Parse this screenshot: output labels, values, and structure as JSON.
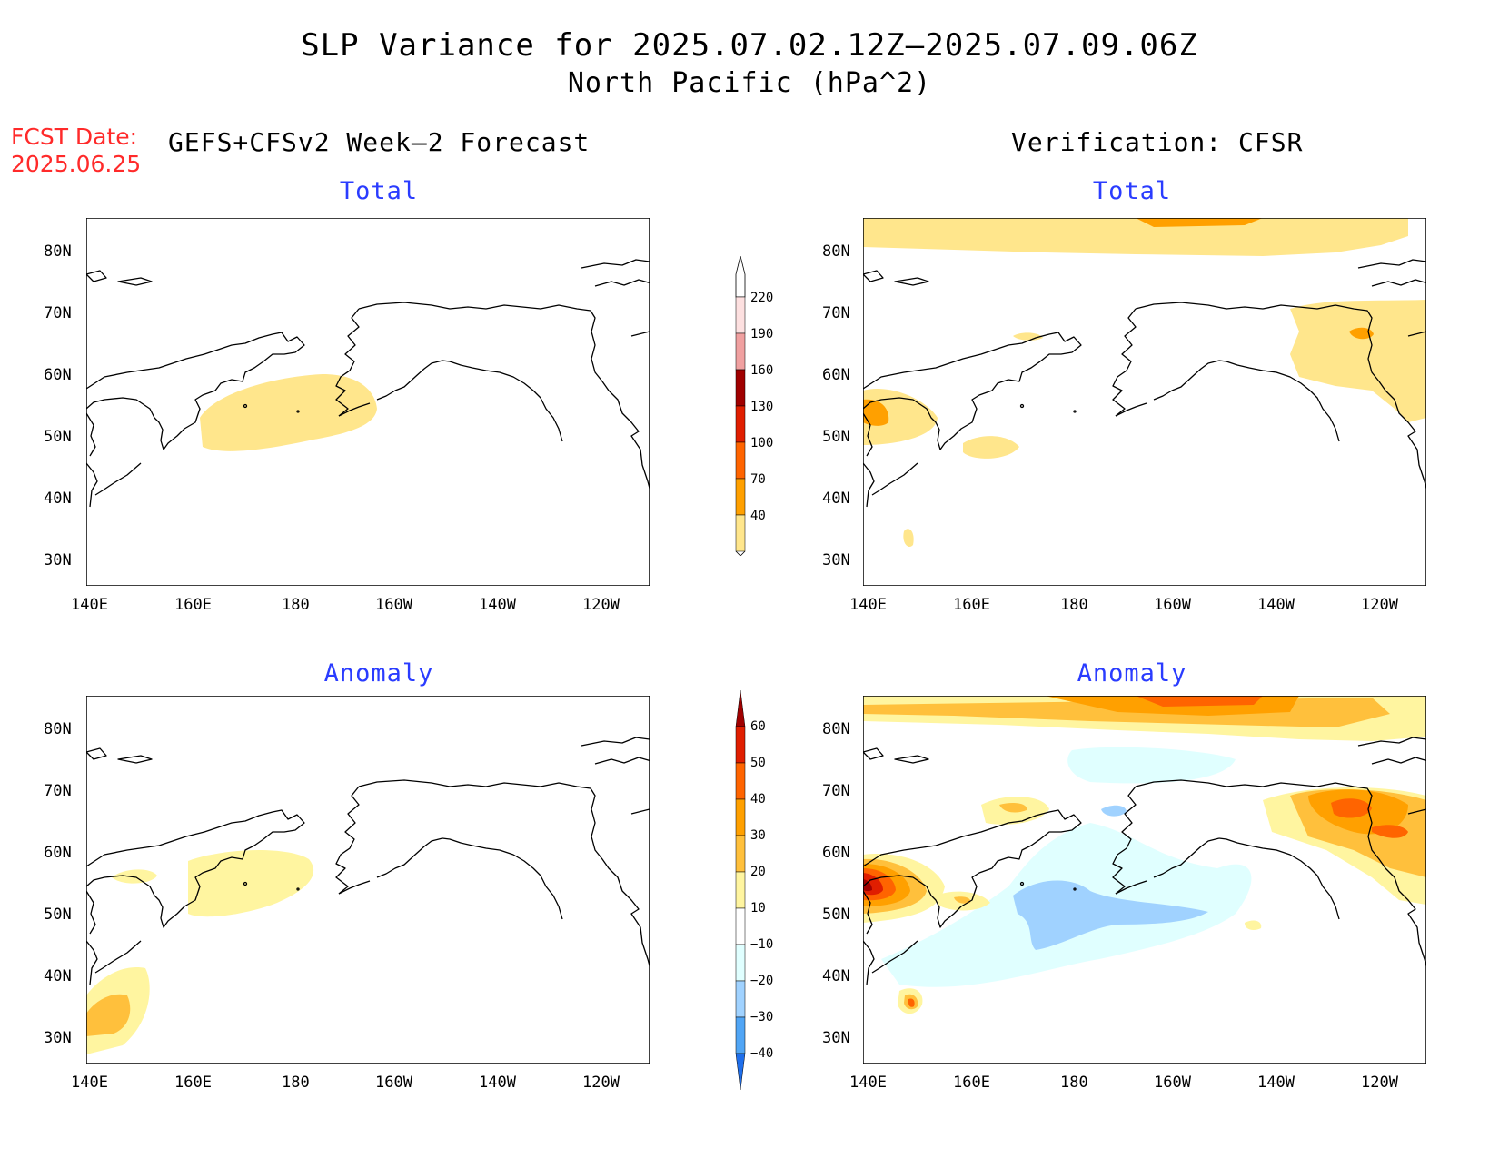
{
  "title_line1": "SLP Variance for 2025.07.02.12Z–2025.07.09.06Z",
  "title_line2": "North Pacific (hPa^2)",
  "fcst_label": "FCST Date:",
  "fcst_date": "2025.06.25",
  "left_header": "GEFS+CFSv2 Week–2 Forecast",
  "right_header": "Verification: CFSR",
  "panels": {
    "fcst_total": {
      "title": "Total"
    },
    "verif_total": {
      "title": "Total"
    },
    "fcst_anom": {
      "title": "Anomaly"
    },
    "verif_anom": {
      "title": "Anomaly"
    }
  },
  "lat_labels": [
    "80N",
    "70N",
    "60N",
    "50N",
    "40N",
    "30N"
  ],
  "lon_labels": [
    "140E",
    "160E",
    "180",
    "160W",
    "140W",
    "120W"
  ],
  "total_colorbar": {
    "levels": [
      "220",
      "190",
      "160",
      "130",
      "100",
      "70",
      "40"
    ],
    "colors": [
      "#fde0e0",
      "#f0a0a0",
      "#a00000",
      "#e01e00",
      "#ff6400",
      "#ffa000",
      "#ffe68c"
    ]
  },
  "anomaly_colorbar": {
    "levels": [
      "60",
      "50",
      "40",
      "30",
      "20",
      "10",
      "−10",
      "−20",
      "−30",
      "−40"
    ],
    "colors": [
      "#a00000",
      "#e01e00",
      "#ff6400",
      "#ffa000",
      "#ffc03c",
      "#fff5a0",
      "#ffffff",
      "#e0ffff",
      "#a0d2ff",
      "#50a5f5",
      "#1e6eeb"
    ]
  }
}
